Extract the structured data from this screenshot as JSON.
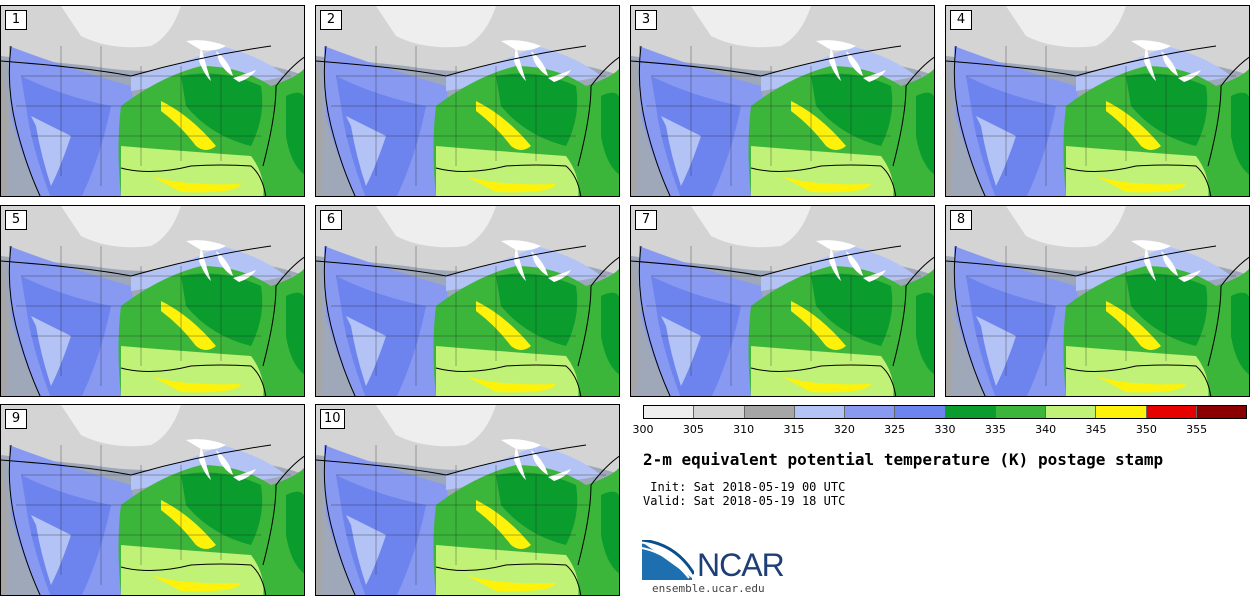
{
  "members": [
    "1",
    "2",
    "3",
    "4",
    "5",
    "6",
    "7",
    "8",
    "9",
    "10"
  ],
  "colorbar": {
    "colors": [
      "#eeeeee",
      "#d4d4d4",
      "#a6a6a6",
      "#b3c3f6",
      "#8899f2",
      "#6d84ee",
      "#0b9c2e",
      "#3cb53b",
      "#bff276",
      "#fef20b",
      "#e60000",
      "#8a0000"
    ],
    "ticks": [
      "300",
      "305",
      "310",
      "315",
      "320",
      "325",
      "330",
      "335",
      "340",
      "345",
      "350",
      "355"
    ]
  },
  "title": "2-m equivalent potential temperature (K) postage stamp",
  "init_line": " Init: Sat 2018-05-19 00 UTC",
  "valid_line": "Valid: Sat 2018-05-19 18 UTC",
  "logo_text": "NCAR",
  "site": "ensemble.ucar.edu"
}
